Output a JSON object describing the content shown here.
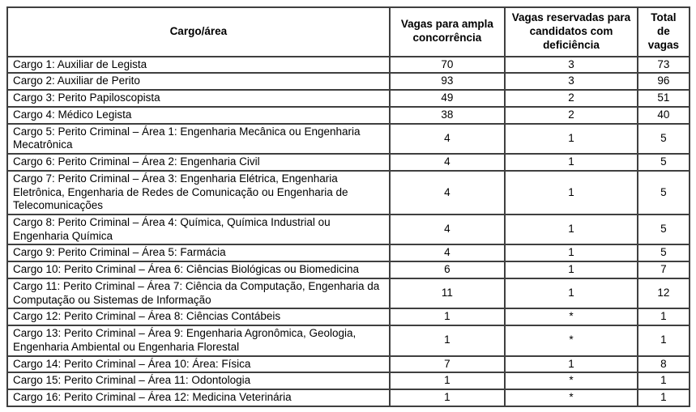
{
  "colors": {
    "border": "#3f3f3f",
    "background": "#ffffff",
    "text": "#000000"
  },
  "table": {
    "columns": {
      "cargo": "Cargo/área",
      "ampla": "Vagas para ampla concorrência",
      "reservadas": "Vagas reservadas para candidatos com deficiência",
      "total": "Total de vagas"
    },
    "rows": [
      {
        "cargo": "Cargo 1: Auxiliar de Legista",
        "ampla": "70",
        "reservadas": "3",
        "total": "73"
      },
      {
        "cargo": "Cargo 2: Auxiliar de Perito",
        "ampla": "93",
        "reservadas": "3",
        "total": "96"
      },
      {
        "cargo": "Cargo 3: Perito Papiloscopista",
        "ampla": "49",
        "reservadas": "2",
        "total": "51"
      },
      {
        "cargo": "Cargo 4: Médico Legista",
        "ampla": "38",
        "reservadas": "2",
        "total": "40"
      },
      {
        "cargo": "Cargo 5: Perito Criminal – Área 1: Engenharia Mecânica ou Engenharia Mecatrônica",
        "ampla": "4",
        "reservadas": "1",
        "total": "5"
      },
      {
        "cargo": "Cargo 6: Perito Criminal – Área 2: Engenharia Civil",
        "ampla": "4",
        "reservadas": "1",
        "total": "5"
      },
      {
        "cargo": "Cargo 7: Perito Criminal – Área 3: Engenharia Elétrica, Engenharia Eletrônica, Engenharia de Redes de Comunicação ou Engenharia de Telecomunicações",
        "ampla": "4",
        "reservadas": "1",
        "total": "5"
      },
      {
        "cargo": "Cargo 8: Perito Criminal – Área 4: Química, Química Industrial ou Engenharia Química",
        "ampla": "4",
        "reservadas": "1",
        "total": "5"
      },
      {
        "cargo": "Cargo 9: Perito Criminal – Área 5: Farmácia",
        "ampla": "4",
        "reservadas": "1",
        "total": "5"
      },
      {
        "cargo": "Cargo 10: Perito Criminal – Área 6: Ciências Biológicas ou Biomedicina",
        "ampla": "6",
        "reservadas": "1",
        "total": "7"
      },
      {
        "cargo": "Cargo 11: Perito Criminal – Área 7: Ciência da Computação, Engenharia da Computação ou Sistemas de Informação",
        "ampla": "11",
        "reservadas": "1",
        "total": "12"
      },
      {
        "cargo": "Cargo 12: Perito Criminal – Área 8: Ciências Contábeis",
        "ampla": "1",
        "reservadas": "*",
        "total": "1"
      },
      {
        "cargo": "Cargo 13: Perito Criminal – Área 9: Engenharia Agronômica, Geologia, Engenharia Ambiental ou Engenharia Florestal",
        "ampla": "1",
        "reservadas": "*",
        "total": "1"
      },
      {
        "cargo": "Cargo 14: Perito Criminal – Área 10: Área: Física",
        "ampla": "7",
        "reservadas": "1",
        "total": "8"
      },
      {
        "cargo": "Cargo 15: Perito Criminal – Área 11: Odontologia",
        "ampla": "1",
        "reservadas": "*",
        "total": "1"
      },
      {
        "cargo": "Cargo 16: Perito Criminal – Área 12: Medicina Veterinária",
        "ampla": "1",
        "reservadas": "*",
        "total": "1"
      }
    ]
  }
}
